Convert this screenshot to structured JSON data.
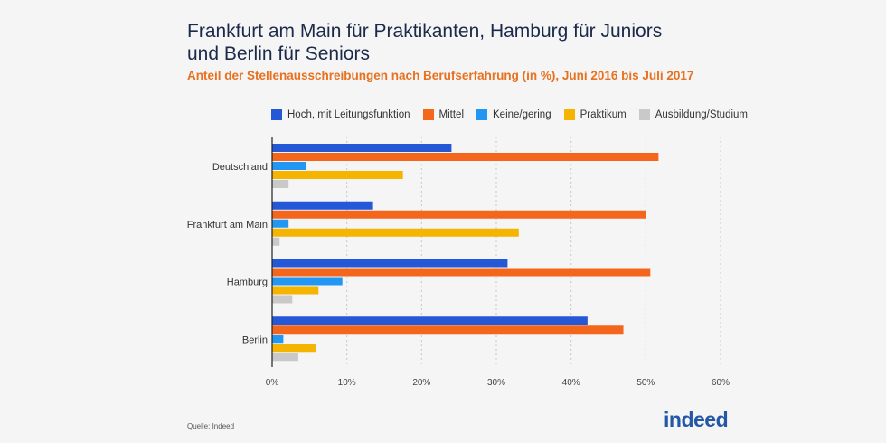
{
  "chart_data": {
    "type": "bar",
    "orientation": "horizontal",
    "title": "Frankfurt am Main für Praktikanten, Hamburg für Juniors und Berlin für Seniors",
    "subtitle": "Anteil der Stellenausschreibungen nach Berufserfahrung (in %), Juni 2016 bis Juli 2017",
    "categories": [
      "Deutschland",
      "Frankfurt am Main",
      "Hamburg",
      "Berlin"
    ],
    "series": [
      {
        "name": "Hoch, mit Leitungsfunktion",
        "color": "#2458d6",
        "values": [
          24,
          13.5,
          31.5,
          42.2
        ]
      },
      {
        "name": "Mittel",
        "color": "#f4661b",
        "values": [
          51.7,
          50,
          50.6,
          47
        ]
      },
      {
        "name": "Keine/gering",
        "color": "#2196f3",
        "values": [
          4.5,
          2.2,
          9.4,
          1.5
        ]
      },
      {
        "name": "Praktikum",
        "color": "#f5b400",
        "values": [
          17.5,
          33,
          6.2,
          5.8
        ]
      },
      {
        "name": "Ausbildung/Studium",
        "color": "#c9c9c9",
        "values": [
          2.2,
          1,
          2.7,
          3.5
        ]
      }
    ],
    "xlim": [
      0,
      60
    ],
    "xticks": [
      "0%",
      "10%",
      "20%",
      "30%",
      "40%",
      "50%",
      "60%"
    ],
    "xlabel": "",
    "ylabel": "",
    "grid": true,
    "legend_position": "top"
  },
  "footer": {
    "source": "Quelle: Indeed",
    "logo": "indeed"
  }
}
